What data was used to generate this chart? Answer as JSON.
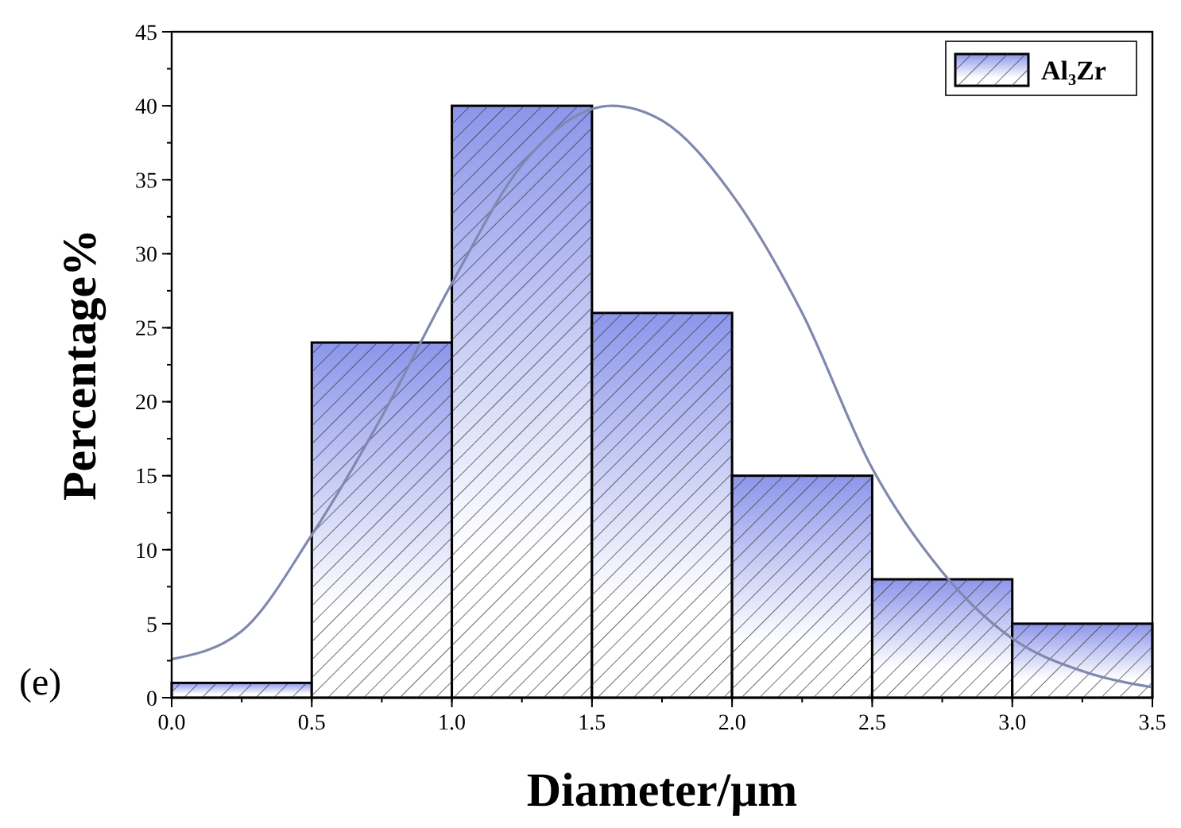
{
  "chart_data": {
    "type": "histogram",
    "xlabel": "Diameter/μm",
    "ylabel": "Percentage%",
    "annotations": [
      "(e)"
    ],
    "bins": [
      0,
      0.5,
      1,
      1.5,
      2,
      2.5,
      3,
      3.5
    ],
    "series": [
      {
        "name": "Al₃Zr",
        "color": "#8c96ea",
        "values": [
          1,
          24,
          40,
          26,
          15,
          8,
          5
        ]
      },
      {
        "type": "line",
        "color": "#8088b0",
        "x": [
          0,
          0.25,
          0.5,
          0.75,
          1,
          1.25,
          1.57,
          1.75,
          2,
          2.25,
          2.5,
          2.75,
          3,
          3.25,
          3.5
        ],
        "values": [
          2.6,
          4.5,
          11,
          19,
          28,
          36,
          40,
          39,
          34,
          26,
          15.5,
          8.5,
          4,
          1.8,
          0.7
        ]
      }
    ],
    "xlim": [
      0,
      3.5
    ],
    "xticks": [
      {
        "value": 0,
        "label": "0.0"
      },
      {
        "value": 0.5,
        "label": "0.5"
      },
      {
        "value": 1,
        "label": "1.0"
      },
      {
        "value": 1.5,
        "label": "1.5"
      },
      {
        "value": 2,
        "label": "2.0"
      },
      {
        "value": 2.5,
        "label": "2.5"
      },
      {
        "value": 3,
        "label": "3.0"
      },
      {
        "value": 3.5,
        "label": "3.5"
      }
    ],
    "ylim": [
      0,
      45
    ],
    "yticks": [
      0,
      5,
      10,
      15,
      20,
      25,
      30,
      35,
      40,
      45
    ],
    "legend": "top right",
    "line_style": "solid",
    "marker": "none"
  }
}
